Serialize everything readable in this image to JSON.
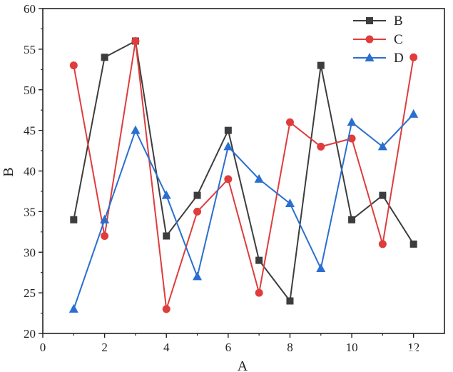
{
  "chart_data": {
    "type": "line",
    "xlabel": "A",
    "ylabel": "B",
    "xlim": [
      0,
      13
    ],
    "ylim": [
      20,
      60
    ],
    "xticks": [
      0,
      2,
      4,
      6,
      8,
      10,
      12
    ],
    "yticks": [
      20,
      25,
      30,
      35,
      40,
      45,
      50,
      55,
      60
    ],
    "grid": false,
    "legend_position": "top-right",
    "x": [
      1,
      2,
      3,
      4,
      5,
      6,
      7,
      8,
      9,
      10,
      11,
      12
    ],
    "series": [
      {
        "name": "B",
        "color": "#3d3d3d",
        "marker": "square",
        "values": [
          34,
          54,
          56,
          32,
          37,
          45,
          29,
          24,
          53,
          34,
          37,
          31
        ]
      },
      {
        "name": "C",
        "color": "#e03c3c",
        "marker": "circle",
        "values": [
          53,
          32,
          56,
          23,
          35,
          39,
          25,
          46,
          43,
          44,
          31,
          54
        ]
      },
      {
        "name": "D",
        "color": "#2a6fd0",
        "marker": "triangle",
        "values": [
          23,
          34,
          45,
          37,
          27,
          43,
          39,
          36,
          28,
          46,
          43,
          47
        ]
      }
    ]
  },
  "watermark": "知乎 @科研N次方"
}
